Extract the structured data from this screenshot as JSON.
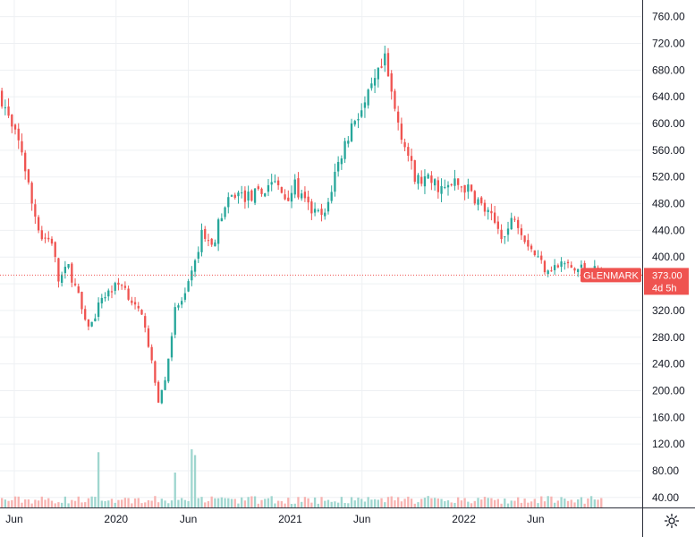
{
  "colors": {
    "up": "#26a69a",
    "down": "#ef5350",
    "up_volume": "#9fd6cf",
    "down_volume": "#f7b3b1",
    "grid": "#eef0f3",
    "axis_text": "#131722",
    "price_line": "#ef5350",
    "tag_bg": "#ef5350"
  },
  "last_price": {
    "symbol": "GLENMARK",
    "price": "373.00",
    "countdown": "4d 5h",
    "value": 373
  },
  "settings_icon": "gear-icon",
  "chart_data": {
    "type": "candlestick",
    "interval": "weekly",
    "y_axis": {
      "ticks": [
        "40.00",
        "80.00",
        "120.00",
        "160.00",
        "200.00",
        "240.00",
        "280.00",
        "320.00",
        "360.00",
        "400.00",
        "440.00",
        "480.00",
        "520.00",
        "560.00",
        "600.00",
        "640.00",
        "680.00",
        "720.00",
        "760.00"
      ],
      "range": [
        25,
        785
      ],
      "position": "right"
    },
    "x_axis": {
      "ticks": [
        {
          "label": "Jun",
          "date": "2019-06-01"
        },
        {
          "label": "2020",
          "date": "2020-01-01"
        },
        {
          "label": "Jun",
          "date": "2020-06-01"
        },
        {
          "label": "2021",
          "date": "2021-01-01"
        },
        {
          "label": "Jun",
          "date": "2021-06-01"
        },
        {
          "label": "2022",
          "date": "2022-01-01"
        },
        {
          "label": "Jun",
          "date": "2022-06-01"
        }
      ],
      "range": [
        "2019-05-02",
        "2023-01-11"
      ]
    },
    "grid": true,
    "close_anchors": [
      [
        "2019-05-06",
        640
      ],
      [
        "2019-05-27",
        590
      ],
      [
        "2019-06-17",
        560
      ],
      [
        "2019-07-08",
        480
      ],
      [
        "2019-07-29",
        430
      ],
      [
        "2019-08-19",
        425
      ],
      [
        "2019-09-02",
        365
      ],
      [
        "2019-09-23",
        385
      ],
      [
        "2019-10-14",
        340
      ],
      [
        "2019-10-28",
        300
      ],
      [
        "2019-11-11",
        300
      ],
      [
        "2019-12-02",
        340
      ],
      [
        "2019-12-23",
        352
      ],
      [
        "2020-01-13",
        362
      ],
      [
        "2020-02-10",
        325
      ],
      [
        "2020-03-02",
        300
      ],
      [
        "2020-03-16",
        240
      ],
      [
        "2020-03-30",
        185
      ],
      [
        "2020-04-13",
        215
      ],
      [
        "2020-05-04",
        320
      ],
      [
        "2020-05-25",
        340
      ],
      [
        "2020-06-15",
        390
      ],
      [
        "2020-06-29",
        440
      ],
      [
        "2020-07-20",
        415
      ],
      [
        "2020-08-10",
        465
      ],
      [
        "2020-09-07",
        495
      ],
      [
        "2020-10-05",
        490
      ],
      [
        "2020-11-02",
        495
      ],
      [
        "2020-11-23",
        515
      ],
      [
        "2020-12-21",
        490
      ],
      [
        "2021-01-11",
        505
      ],
      [
        "2021-02-01",
        480
      ],
      [
        "2021-02-22",
        465
      ],
      [
        "2021-03-15",
        460
      ],
      [
        "2021-04-05",
        525
      ],
      [
        "2021-04-26",
        570
      ],
      [
        "2021-05-17",
        610
      ],
      [
        "2021-06-07",
        625
      ],
      [
        "2021-06-28",
        660
      ],
      [
        "2021-07-19",
        690
      ],
      [
        "2021-08-09",
        620
      ],
      [
        "2021-08-30",
        570
      ],
      [
        "2021-09-20",
        515
      ],
      [
        "2021-10-11",
        515
      ],
      [
        "2021-11-01",
        510
      ],
      [
        "2021-11-22",
        500
      ],
      [
        "2021-12-13",
        510
      ],
      [
        "2022-01-03",
        505
      ],
      [
        "2022-01-24",
        490
      ],
      [
        "2022-02-14",
        470
      ],
      [
        "2022-03-07",
        450
      ],
      [
        "2022-03-28",
        430
      ],
      [
        "2022-04-18",
        465
      ],
      [
        "2022-05-09",
        430
      ],
      [
        "2022-05-30",
        405
      ],
      [
        "2022-06-20",
        385
      ],
      [
        "2022-07-11",
        385
      ],
      [
        "2022-08-01",
        390
      ],
      [
        "2022-08-22",
        380
      ],
      [
        "2022-09-12",
        385
      ],
      [
        "2022-10-03",
        380
      ],
      [
        "2022-10-17",
        373
      ]
    ],
    "volume_spikes": [
      {
        "date": "2019-11-25",
        "volume": 95
      },
      {
        "date": "2020-06-08",
        "volume": 100
      },
      {
        "date": "2020-06-15",
        "volume": 90
      },
      {
        "date": "2020-05-04",
        "volume": 60
      }
    ]
  }
}
